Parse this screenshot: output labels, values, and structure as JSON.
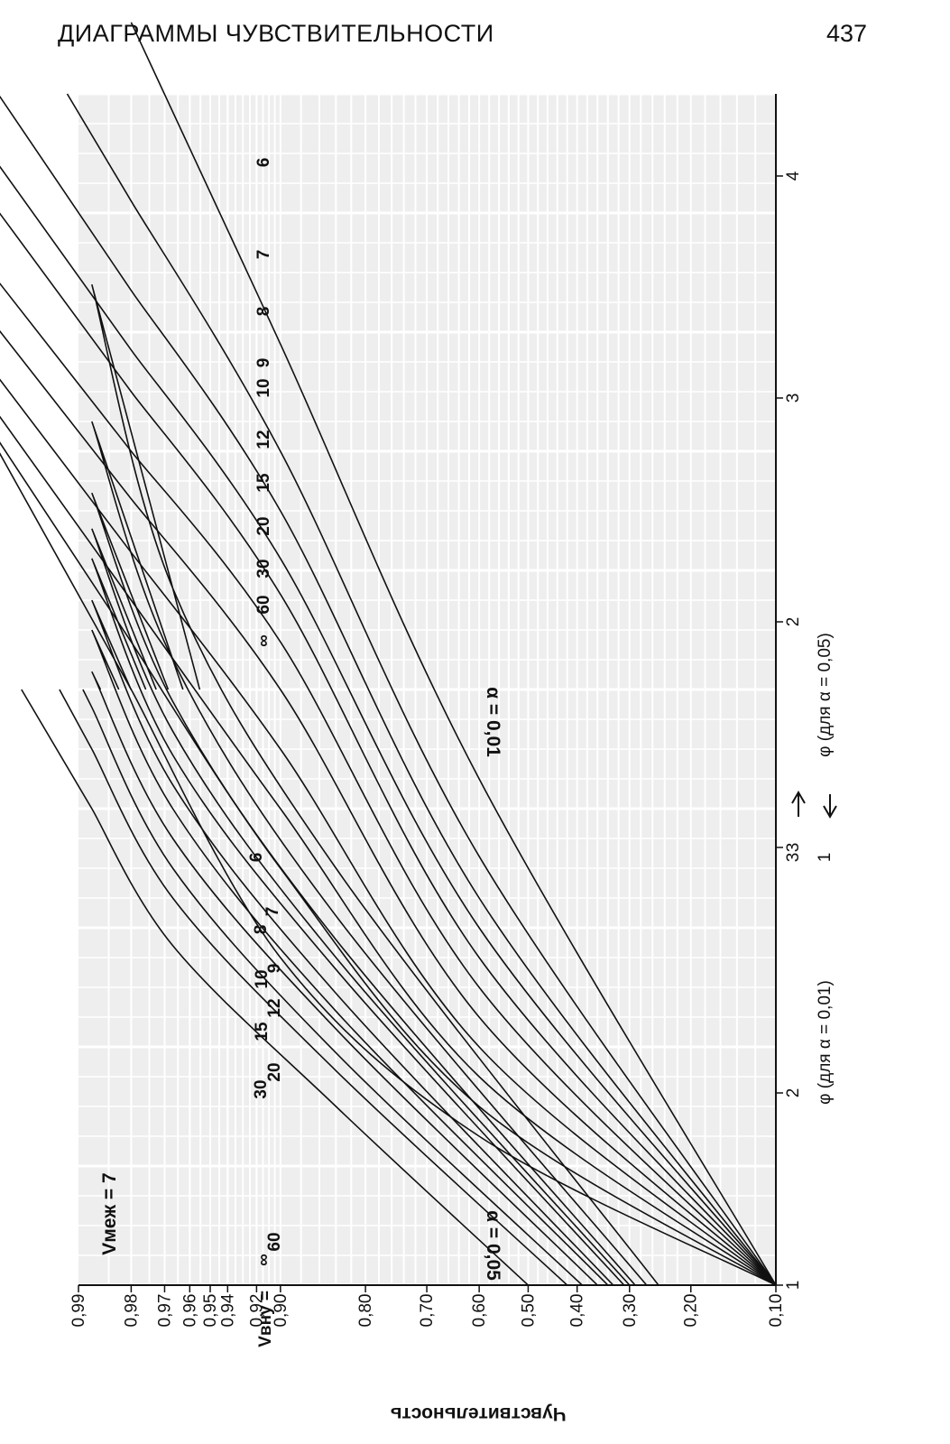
{
  "header": {
    "title": "ДИАГРАММЫ ЧУВСТВИТЕЛЬНОСТИ",
    "page_number": "437"
  },
  "chart_data": {
    "type": "line",
    "subtitle": "Vмеж = 7",
    "ylabel": "Чувствительность",
    "y_ticks": [
      "0,99",
      "0,98",
      "0,97",
      "0,96",
      "0,95",
      "0,94",
      "0,92",
      "0,90",
      "0,80",
      "0,70",
      "0,60",
      "0,50",
      "0,40",
      "0,30",
      "0,20",
      "0,10"
    ],
    "x_ticks": {
      "bottom": [
        "1",
        "2",
        "3"
      ],
      "top": [
        "2",
        "3",
        "4"
      ]
    },
    "x_axis_labels": {
      "left": "φ (для α = 0,01)",
      "right": "φ (для α = 0,05)",
      "arrow_left": "3",
      "arrow_right": "1"
    },
    "panels": [
      {
        "alpha_label": "α = 0,05",
        "legend_prefix": "Vвну",
        "x_range": [
          1,
          3
        ],
        "series": [
          {
            "name": "∞",
            "points": [
              [
                1.0,
                0.5
              ],
              [
                1.3,
                0.84
              ],
              [
                1.57,
                0.967
              ],
              [
                1.8,
                0.988
              ]
            ]
          },
          {
            "name": "60",
            "points": [
              [
                1.0,
                0.42
              ],
              [
                1.36,
                0.84
              ],
              [
                1.65,
                0.967
              ],
              [
                1.9,
                0.988
              ]
            ]
          },
          {
            "name": "30",
            "points": [
              [
                1.0,
                0.39
              ],
              [
                1.39,
                0.84
              ],
              [
                1.7,
                0.967
              ],
              [
                1.97,
                0.988
              ]
            ]
          },
          {
            "name": "20",
            "points": [
              [
                1.0,
                0.36
              ],
              [
                1.43,
                0.84
              ],
              [
                1.75,
                0.967
              ],
              [
                2.03,
                0.988
              ]
            ]
          },
          {
            "name": "15",
            "points": [
              [
                1.0,
                0.34
              ],
              [
                1.46,
                0.84
              ],
              [
                1.8,
                0.967
              ],
              [
                2.1,
                0.988
              ]
            ]
          },
          {
            "name": "12",
            "points": [
              [
                1.0,
                0.33
              ],
              [
                1.49,
                0.84
              ],
              [
                1.84,
                0.967
              ],
              [
                2.15,
                0.988
              ]
            ]
          },
          {
            "name": "10",
            "points": [
              [
                1.0,
                0.31
              ],
              [
                1.53,
                0.84
              ],
              [
                1.89,
                0.967
              ],
              [
                2.22,
                0.988
              ]
            ]
          },
          {
            "name": "9",
            "points": [
              [
                1.0,
                0.3
              ],
              [
                1.55,
                0.84
              ],
              [
                1.93,
                0.967
              ],
              [
                2.27,
                0.988
              ]
            ]
          },
          {
            "name": "8",
            "points": [
              [
                1.0,
                0.29
              ],
              [
                1.58,
                0.84
              ],
              [
                1.98,
                0.967
              ],
              [
                2.33,
                0.988
              ]
            ]
          },
          {
            "name": "7",
            "points": [
              [
                1.0,
                0.27
              ],
              [
                1.62,
                0.84
              ],
              [
                2.05,
                0.967
              ],
              [
                2.45,
                0.988
              ]
            ]
          },
          {
            "name": "6",
            "points": [
              [
                1.0,
                0.25
              ],
              [
                1.7,
                0.84
              ],
              [
                2.17,
                0.967
              ],
              [
                2.68,
                0.988
              ]
            ]
          }
        ]
      },
      {
        "alpha_label": "α = 0,01",
        "legend_prefix": "",
        "x_range": [
          2,
          4
        ],
        "series": [
          {
            "name": "∞",
            "points": [
              [
                2.0,
                0.1
              ],
              [
                2.25,
                0.6
              ],
              [
                2.55,
                0.9
              ],
              [
                3.0,
                0.98
              ]
            ]
          },
          {
            "name": "60",
            "points": [
              [
                2.0,
                0.1
              ],
              [
                2.3,
                0.6
              ],
              [
                2.7,
                0.9
              ],
              [
                3.08,
                0.98
              ]
            ]
          },
          {
            "name": "30",
            "points": [
              [
                2.0,
                0.1
              ],
              [
                2.35,
                0.6
              ],
              [
                2.8,
                0.9
              ],
              [
                3.15,
                0.98
              ]
            ]
          },
          {
            "name": "20",
            "points": [
              [
                2.0,
                0.1
              ],
              [
                2.4,
                0.6
              ],
              [
                2.9,
                0.9
              ],
              [
                3.23,
                0.98
              ]
            ]
          },
          {
            "name": "15",
            "points": [
              [
                2.0,
                0.1
              ],
              [
                2.45,
                0.6
              ],
              [
                3.0,
                0.9
              ],
              [
                3.32,
                0.98
              ]
            ]
          },
          {
            "name": "12",
            "points": [
              [
                2.0,
                0.1
              ],
              [
                2.5,
                0.6
              ],
              [
                3.08,
                0.9
              ],
              [
                3.4,
                0.98
              ]
            ]
          },
          {
            "name": "10",
            "points": [
              [
                2.0,
                0.1
              ],
              [
                2.55,
                0.6
              ],
              [
                3.16,
                0.9
              ],
              [
                3.5,
                0.98
              ]
            ]
          },
          {
            "name": "9",
            "points": [
              [
                2.0,
                0.1
              ],
              [
                2.6,
                0.6
              ],
              [
                3.22,
                0.9
              ],
              [
                3.57,
                0.98
              ]
            ]
          },
          {
            "name": "8",
            "points": [
              [
                2.0,
                0.1
              ],
              [
                2.65,
                0.6
              ],
              [
                3.3,
                0.9
              ],
              [
                3.67,
                0.98
              ]
            ]
          },
          {
            "name": "7",
            "points": [
              [
                2.0,
                0.1
              ],
              [
                2.72,
                0.6
              ],
              [
                3.4,
                0.9
              ],
              [
                3.82,
                0.98
              ]
            ]
          },
          {
            "name": "6",
            "points": [
              [
                2.0,
                0.1
              ],
              [
                2.85,
                0.6
              ],
              [
                3.58,
                0.9
              ],
              [
                4.12,
                0.98
              ]
            ]
          }
        ]
      }
    ]
  }
}
